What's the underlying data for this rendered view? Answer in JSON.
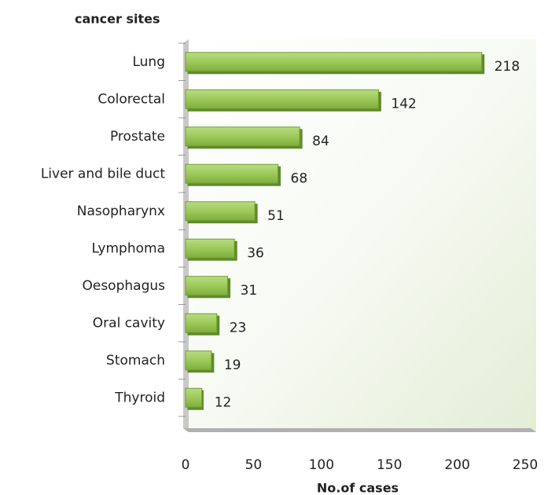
{
  "chart_data": {
    "type": "bar",
    "orientation": "horizontal",
    "title": "cancer sites",
    "x_label": "No.of cases",
    "categories": [
      "Lung",
      "Colorectal",
      "Prostate",
      "Liver and bile duct",
      "Nasopharynx",
      "Lymphoma",
      "Oesophagus",
      "Oral cavity",
      "Stomach",
      "Thyroid"
    ],
    "values": [
      218,
      142,
      84,
      68,
      51,
      36,
      31,
      23,
      19,
      12
    ],
    "color": "#9cc95a",
    "xlim": [
      0,
      250
    ],
    "xticks": [
      0,
      50,
      100,
      150,
      200,
      250
    ],
    "grid": false
  }
}
